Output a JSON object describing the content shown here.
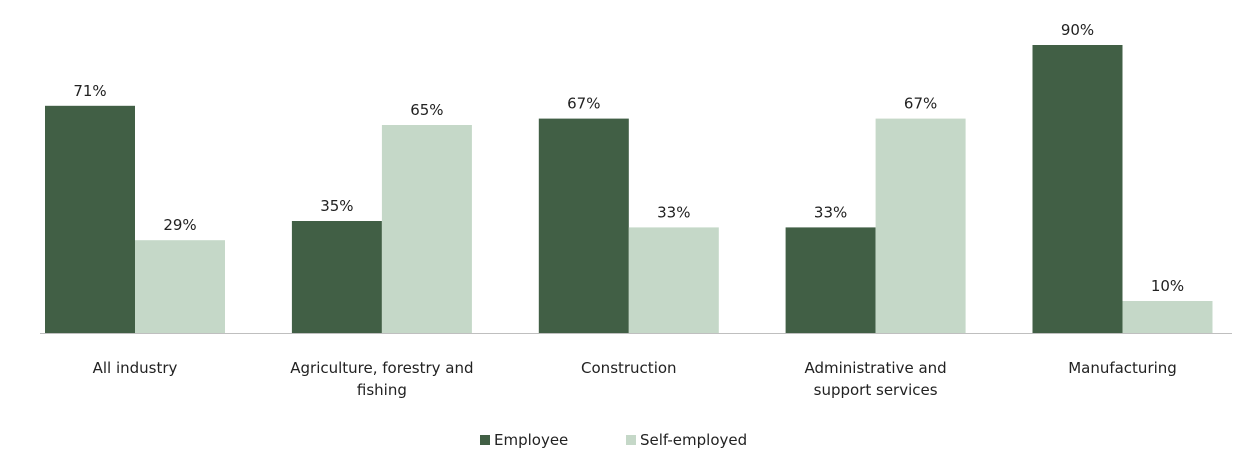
{
  "chart_data": {
    "type": "bar",
    "title": "",
    "xlabel": "",
    "ylabel": "",
    "categories": [
      [
        "All industry"
      ],
      [
        "Agriculture, forestry and",
        "fishing"
      ],
      [
        "Construction"
      ],
      [
        "Administrative and",
        "support services"
      ],
      [
        "Manufacturing"
      ]
    ],
    "series": [
      {
        "name": "Employee",
        "color": "#415f45",
        "values": [
          71,
          35,
          67,
          33,
          90
        ]
      },
      {
        "name": "Self-employed",
        "color": "#c5d8c8",
        "values": [
          29,
          65,
          33,
          67,
          10
        ]
      }
    ],
    "value_suffix": "%",
    "ylim": [
      0,
      100
    ],
    "grid": false,
    "legend_position": "bottom-center"
  }
}
